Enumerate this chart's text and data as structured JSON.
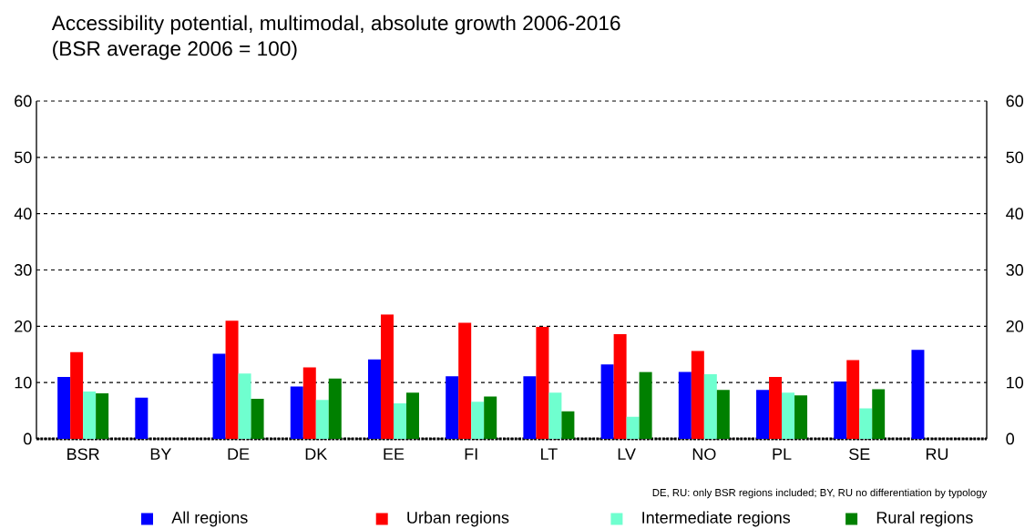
{
  "chart_data": {
    "type": "bar",
    "title": "Accessibility potential, multimodal, absolute growth 2006-2016",
    "subtitle": "(BSR average 2006 = 100)",
    "categories": [
      "BSR",
      "BY",
      "DE",
      "DK",
      "EE",
      "FI",
      "LT",
      "LV",
      "NO",
      "PL",
      "SE",
      "RU"
    ],
    "series": [
      {
        "name": "All regions",
        "color": "#0000ff",
        "values": [
          11,
          7.3,
          15.1,
          9.3,
          14.1,
          11.1,
          11.1,
          13.2,
          11.9,
          8.7,
          10.2,
          15.8
        ]
      },
      {
        "name": "Urban regions",
        "color": "#ff0000",
        "values": [
          15.4,
          null,
          21,
          12.7,
          22.1,
          20.6,
          19.9,
          18.6,
          15.6,
          11,
          14,
          null
        ]
      },
      {
        "name": "Intermediate regions",
        "color": "#6fffcf",
        "values": [
          8.4,
          null,
          11.6,
          6.9,
          6.3,
          6.6,
          8.2,
          3.9,
          11.5,
          8.2,
          5.4,
          null
        ]
      },
      {
        "name": "Rural regions",
        "color": "#008000",
        "values": [
          8.1,
          null,
          7.1,
          10.7,
          8.2,
          7.5,
          4.9,
          11.9,
          8.7,
          7.7,
          8.8,
          null
        ]
      }
    ],
    "ylim": [
      0,
      60
    ],
    "yticks": [
      0,
      10,
      20,
      30,
      40,
      50,
      60
    ],
    "y2lim": [
      0,
      60
    ],
    "y2ticks": [
      0,
      10,
      20,
      30,
      40,
      50,
      60
    ],
    "grid": "y",
    "legend": "bottom",
    "annotations": [
      "DE, RU: only BSR regions included; BY, RU no differentiation by typology"
    ]
  }
}
